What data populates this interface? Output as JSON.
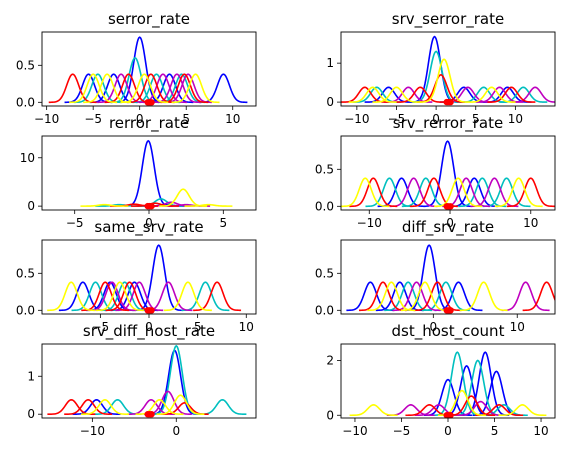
{
  "figure": {
    "background": "#ffffff"
  },
  "chart_data": [
    {
      "type": "line",
      "title": "serror_rate",
      "xlim": [
        -10.5,
        12.5
      ],
      "ylim": [
        -0.05,
        0.95
      ],
      "xticks": [
        -10,
        -5,
        0,
        5,
        10
      ],
      "xtick_labels": [
        "−10",
        "−5",
        "0",
        "5",
        "10"
      ],
      "yticks": [
        0,
        0.5
      ],
      "ytick_labels": [
        "0.0",
        "0.5"
      ],
      "series": [
        {
          "color": "#0000ff",
          "values": [
            [
              -5.5,
              0.38
            ],
            [
              -2.8,
              0.38
            ],
            [
              0,
              0.88
            ],
            [
              3.2,
              0.38
            ],
            [
              9,
              0.38
            ]
          ]
        },
        {
          "color": "#00bfbf",
          "values": [
            [
              -4.5,
              0.38
            ],
            [
              -0.5,
              0.6
            ],
            [
              1.8,
              0.38
            ],
            [
              4.5,
              0.38
            ]
          ]
        },
        {
          "color": "#bf00bf",
          "values": [
            [
              -2,
              0.38
            ],
            [
              2.5,
              0.38
            ],
            [
              4,
              0.38
            ],
            [
              5.2,
              0.38
            ]
          ]
        },
        {
          "color": "#ff0000",
          "values": [
            [
              -7.2,
              0.38
            ],
            [
              -1.2,
              0.38
            ],
            [
              1.2,
              0.38
            ],
            [
              4.8,
              0.38
            ]
          ]
        },
        {
          "color": "#ffff00",
          "values": [
            [
              -5,
              0.38
            ],
            [
              -3.5,
              0.38
            ],
            [
              0.5,
              0.38
            ],
            [
              6,
              0.38
            ]
          ]
        }
      ]
    },
    {
      "type": "line",
      "title": "srv_serror_rate",
      "xlim": [
        -12,
        15
      ],
      "ylim": [
        -0.1,
        1.8
      ],
      "xticks": [
        -10,
        -5,
        0,
        5,
        10
      ],
      "xtick_labels": [
        "−10",
        "−5",
        "0",
        "5",
        "10"
      ],
      "yticks": [
        0,
        1
      ],
      "ytick_labels": [
        "0",
        "1"
      ],
      "series": [
        {
          "color": "#0000ff",
          "values": [
            [
              -6,
              0.38
            ],
            [
              -0.2,
              1.68
            ],
            [
              3.5,
              0.38
            ],
            [
              9,
              0.38
            ]
          ]
        },
        {
          "color": "#00bfbf",
          "values": [
            [
              -7.5,
              0.38
            ],
            [
              0,
              1.3
            ],
            [
              6,
              0.38
            ],
            [
              11,
              0.38
            ]
          ]
        },
        {
          "color": "#bf00bf",
          "values": [
            [
              -3.5,
              0.38
            ],
            [
              4,
              0.38
            ],
            [
              8,
              0.38
            ],
            [
              12.5,
              0.38
            ]
          ]
        },
        {
          "color": "#ff0000",
          "values": [
            [
              -9,
              0.38
            ],
            [
              -2,
              0.38
            ],
            [
              0.6,
              0.7
            ],
            [
              9.5,
              0.38
            ]
          ]
        },
        {
          "color": "#ffff00",
          "values": [
            [
              -8,
              0.38
            ],
            [
              -5,
              0.38
            ],
            [
              1,
              1.1
            ],
            [
              7,
              0.38
            ]
          ]
        }
      ]
    },
    {
      "type": "line",
      "title": "rerror_rate",
      "xlim": [
        -7.2,
        7.2
      ],
      "ylim": [
        -0.8,
        14.5
      ],
      "xticks": [
        -5,
        0,
        5
      ],
      "xtick_labels": [
        "−5",
        "0",
        "5"
      ],
      "yticks": [
        0,
        10
      ],
      "ytick_labels": [
        "0",
        "10"
      ],
      "series": [
        {
          "color": "#0000ff",
          "values": [
            [
              -0.05,
              13.5
            ],
            [
              1.2,
              0.3
            ]
          ]
        },
        {
          "color": "#00bfbf",
          "values": [
            [
              0.8,
              1.5
            ],
            [
              -2,
              0.3
            ]
          ]
        },
        {
          "color": "#bf00bf",
          "values": [
            [
              1.5,
              0.8
            ],
            [
              2.5,
              0.3
            ]
          ]
        },
        {
          "color": "#ff0000",
          "values": [
            [
              -1,
              0.4
            ],
            [
              0.4,
              0.6
            ]
          ]
        },
        {
          "color": "#ffff00",
          "values": [
            [
              2.3,
              3.5
            ],
            [
              -3,
              0.3
            ],
            [
              4,
              0.3
            ]
          ]
        }
      ]
    },
    {
      "type": "line",
      "title": "srv_rerror_rate",
      "xlim": [
        -13.5,
        13
      ],
      "ylim": [
        -0.05,
        0.95
      ],
      "xticks": [
        -10,
        0,
        10
      ],
      "xtick_labels": [
        "−10",
        "0",
        "10"
      ],
      "yticks": [
        0,
        0.5
      ],
      "ytick_labels": [
        "0.0",
        "0.5"
      ],
      "series": [
        {
          "color": "#0000ff",
          "values": [
            [
              -6,
              0.38
            ],
            [
              -0.3,
              0.88
            ],
            [
              3,
              0.38
            ]
          ]
        },
        {
          "color": "#00bfbf",
          "values": [
            [
              -7.5,
              0.38
            ],
            [
              -3,
              0.38
            ],
            [
              4,
              0.38
            ],
            [
              7,
              0.38
            ]
          ]
        },
        {
          "color": "#bf00bf",
          "values": [
            [
              -4.5,
              0.38
            ],
            [
              2,
              0.38
            ],
            [
              5.5,
              0.38
            ]
          ]
        },
        {
          "color": "#ff0000",
          "values": [
            [
              -9.5,
              0.38
            ],
            [
              -2,
              0.38
            ],
            [
              10,
              0.38
            ]
          ]
        },
        {
          "color": "#ffff00",
          "values": [
            [
              -10.5,
              0.38
            ],
            [
              1,
              0.38
            ],
            [
              8.5,
              0.38
            ]
          ]
        }
      ]
    },
    {
      "type": "line",
      "title": "same_srv_rate",
      "xlim": [
        -11,
        11
      ],
      "ylim": [
        -0.05,
        0.95
      ],
      "xticks": [
        -5,
        0,
        5,
        10
      ],
      "xtick_labels": [
        "−5",
        "0",
        "5",
        "10"
      ],
      "yticks": [
        0,
        0.5
      ],
      "ytick_labels": [
        "0.0",
        "0.5"
      ],
      "series": [
        {
          "color": "#0000ff",
          "values": [
            [
              -6.8,
              0.38
            ],
            [
              -4,
              0.38
            ],
            [
              -1.5,
              0.38
            ],
            [
              1,
              0.88
            ]
          ]
        },
        {
          "color": "#00bfbf",
          "values": [
            [
              -5.5,
              0.38
            ],
            [
              -2.5,
              0.38
            ],
            [
              5.8,
              0.38
            ]
          ]
        },
        {
          "color": "#bf00bf",
          "values": [
            [
              -3.8,
              0.38
            ],
            [
              -1,
              0.38
            ],
            [
              2,
              0.38
            ]
          ]
        },
        {
          "color": "#ff0000",
          "values": [
            [
              -4.5,
              0.38
            ],
            [
              -2,
              0.38
            ],
            [
              7,
              0.38
            ]
          ]
        },
        {
          "color": "#ffff00",
          "values": [
            [
              -8,
              0.38
            ],
            [
              -3,
              0.38
            ],
            [
              4,
              0.38
            ]
          ]
        }
      ]
    },
    {
      "type": "line",
      "title": "diff_srv_rate",
      "xlim": [
        -11,
        14.5
      ],
      "ylim": [
        -0.05,
        0.95
      ],
      "xticks": [
        0,
        10
      ],
      "xtick_labels": [
        "0",
        "10"
      ],
      "yticks": [
        0,
        0.5
      ],
      "ytick_labels": [
        "0.0",
        "0.5"
      ],
      "series": [
        {
          "color": "#0000ff",
          "values": [
            [
              -7.5,
              0.38
            ],
            [
              -4,
              0.38
            ],
            [
              -0.5,
              0.88
            ],
            [
              3,
              0.38
            ]
          ]
        },
        {
          "color": "#00bfbf",
          "values": [
            [
              -3,
              0.38
            ],
            [
              1.5,
              0.38
            ]
          ]
        },
        {
          "color": "#bf00bf",
          "values": [
            [
              -2,
              0.38
            ],
            [
              11,
              0.38
            ]
          ]
        },
        {
          "color": "#ff0000",
          "values": [
            [
              -6,
              0.38
            ],
            [
              0.5,
              0.38
            ],
            [
              13.5,
              0.38
            ]
          ]
        },
        {
          "color": "#ffff00",
          "values": [
            [
              -5,
              0.38
            ],
            [
              -1,
              0.38
            ],
            [
              6,
              0.38
            ]
          ]
        }
      ]
    },
    {
      "type": "line",
      "title": "srv_diff_host_rate",
      "xlim": [
        -16,
        9.5
      ],
      "ylim": [
        -0.1,
        1.85
      ],
      "xticks": [
        -10,
        0
      ],
      "xtick_labels": [
        "−10",
        "0"
      ],
      "yticks": [
        0,
        1
      ],
      "ytick_labels": [
        "0",
        "1"
      ],
      "series": [
        {
          "color": "#0000ff",
          "values": [
            [
              -9.5,
              0.38
            ],
            [
              -0.2,
              1.68
            ]
          ]
        },
        {
          "color": "#00bfbf",
          "values": [
            [
              -7,
              0.38
            ],
            [
              0,
              1.8
            ],
            [
              5.5,
              0.38
            ]
          ]
        },
        {
          "color": "#bf00bf",
          "values": [
            [
              -3,
              0.38
            ],
            [
              -1,
              0.6
            ]
          ]
        },
        {
          "color": "#ff0000",
          "values": [
            [
              -12.5,
              0.38
            ],
            [
              -10.5,
              0.38
            ],
            [
              1,
              0.3
            ]
          ]
        },
        {
          "color": "#ffff00",
          "values": [
            [
              -8.5,
              0.38
            ],
            [
              -2,
              0.38
            ],
            [
              0.5,
              0.5
            ]
          ]
        }
      ]
    },
    {
      "type": "line",
      "title": "dst_host_count",
      "xlim": [
        -11.5,
        11.5
      ],
      "ylim": [
        -0.1,
        2.6
      ],
      "xticks": [
        -10,
        -5,
        0,
        5,
        10
      ],
      "xtick_labels": [
        "−10",
        "−5",
        "0",
        "5",
        "10"
      ],
      "yticks": [
        0,
        2
      ],
      "ytick_labels": [
        "0",
        "2"
      ],
      "series": [
        {
          "color": "#0000ff",
          "values": [
            [
              0,
              1.3
            ],
            [
              2,
              1.8
            ],
            [
              4,
              2.3
            ],
            [
              5.2,
              1.6
            ]
          ]
        },
        {
          "color": "#00bfbf",
          "values": [
            [
              1,
              2.3
            ],
            [
              3.2,
              2.0
            ],
            [
              6,
              0.38
            ]
          ]
        },
        {
          "color": "#bf00bf",
          "values": [
            [
              -4,
              0.38
            ],
            [
              -1,
              0.38
            ],
            [
              3.5,
              0.5
            ]
          ]
        },
        {
          "color": "#ff0000",
          "values": [
            [
              -2,
              0.38
            ],
            [
              2.5,
              0.7
            ],
            [
              5.5,
              0.38
            ]
          ]
        },
        {
          "color": "#ffff00",
          "values": [
            [
              -8,
              0.38
            ],
            [
              1.5,
              0.9
            ],
            [
              8,
              0.38
            ]
          ]
        }
      ]
    }
  ]
}
